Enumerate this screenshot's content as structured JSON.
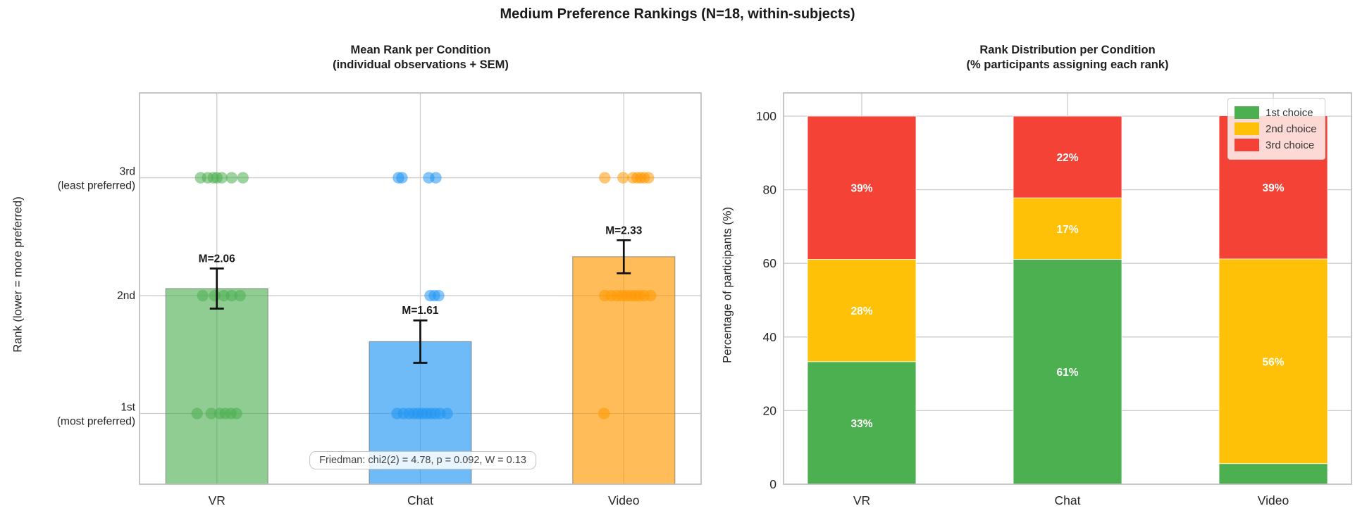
{
  "figure_title": "Medium Preference Rankings (N=18, within-subjects)",
  "colors": {
    "grid": "#cccccc",
    "spine": "#c0c0c0",
    "tick_text": "#262626",
    "title_text": "#1a1a1a",
    "errorbar": "#111111",
    "segment_label_text": "#ffffff",
    "green_solid": "#4CAF50",
    "gold_solid": "#FFC107",
    "red_solid": "#F44336",
    "blue_solid": "#2196F3",
    "orange_solid": "#FF9800"
  },
  "chart_data": [
    {
      "type": "bar",
      "title_line1": "Mean Rank per Condition",
      "title_line2": "(individual observations + SEM)",
      "ylabel": "Rank (lower = more preferred)",
      "categories": [
        "VR",
        "Chat",
        "Video"
      ],
      "means": [
        2.06,
        1.61,
        2.33
      ],
      "sems": [
        0.17,
        0.18,
        0.14
      ],
      "mean_labels": [
        "M=2.06",
        "M=1.61",
        "M=2.33"
      ],
      "bar_fills": [
        "rgba(76,175,80,0.62)",
        "rgba(33,150,243,0.65)",
        "rgba(255,152,0,0.65)"
      ],
      "bar_edge": "rgba(110,110,110,0.6)",
      "dot_colors": [
        "#4CAF50",
        "#2196F3",
        "#FF9800"
      ],
      "ylim": [
        0.4,
        3.72
      ],
      "ytick_values": [
        1,
        2,
        3
      ],
      "ytick_labels": [
        [
          "1st",
          "(most preferred)"
        ],
        [
          "2nd"
        ],
        [
          "3rd",
          "(least preferred)"
        ]
      ],
      "grid": true,
      "annotation": "Friedman: chi2(2) = 4.78, p = 0.092, W = 0.13",
      "jitter_offsets": [
        {
          "rank1": [
            -28,
            -8,
            4,
            12,
            20,
            28
          ],
          "rank2": [
            -20,
            -3,
            10,
            21,
            33
          ],
          "rank3": [
            -23,
            -13,
            -5,
            0,
            7,
            21,
            37
          ]
        },
        {
          "rank1": [
            -33,
            -24,
            -16,
            -9,
            -3,
            3,
            9,
            15,
            21,
            28,
            38
          ],
          "rank2": [
            14,
            20,
            26
          ],
          "rank3": [
            -31,
            -26,
            12,
            22
          ]
        },
        {
          "rank1": [
            -28
          ],
          "rank2": [
            -27,
            -18,
            -10,
            -3,
            4,
            10,
            16,
            22,
            29,
            38
          ],
          "rank3": [
            -27,
            -1,
            13,
            19,
            24,
            29,
            35
          ]
        }
      ]
    },
    {
      "type": "stacked_bar",
      "title_line1": "Rank Distribution per Condition",
      "title_line2": "(% participants assigning each rank)",
      "ylabel": "Percentage of participants (%)",
      "categories": [
        "VR",
        "Chat",
        "Video"
      ],
      "series": [
        {
          "name": "1st choice",
          "color": "#4CAF50",
          "values": [
            33.3,
            61.1,
            5.6
          ],
          "labels": [
            "33%",
            "61%",
            ""
          ]
        },
        {
          "name": "2nd choice",
          "color": "#FFC107",
          "values": [
            27.8,
            16.7,
            55.6
          ],
          "labels": [
            "28%",
            "17%",
            "56%"
          ]
        },
        {
          "name": "3rd choice",
          "color": "#F44336",
          "values": [
            38.9,
            22.2,
            38.9
          ],
          "labels": [
            "39%",
            "22%",
            "39%"
          ]
        }
      ],
      "ylim": [
        0,
        100
      ],
      "yticks": [
        0,
        20,
        40,
        60,
        80,
        100
      ],
      "grid": true,
      "legend_position": "upper right"
    }
  ]
}
